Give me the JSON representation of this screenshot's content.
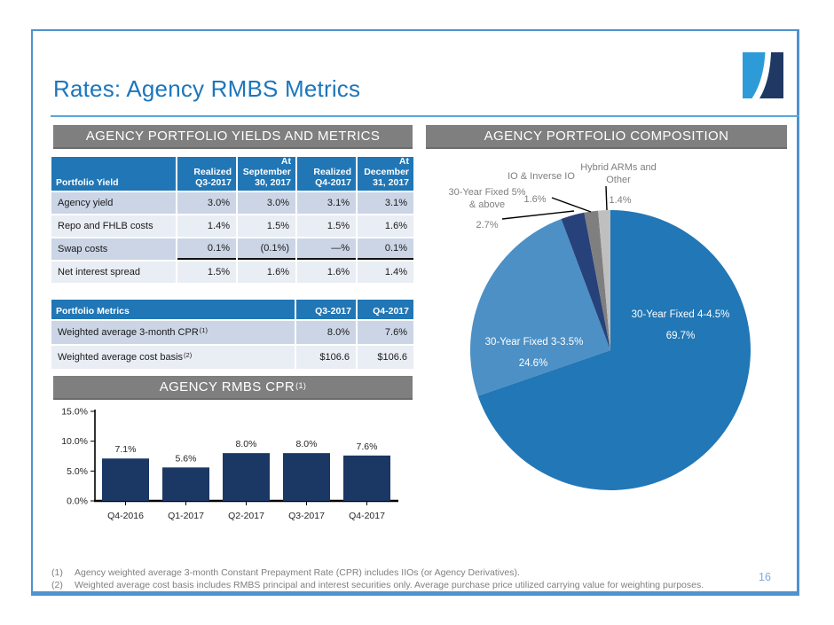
{
  "slide": {
    "title": "Rates: Agency RMBS Metrics",
    "page_number": "16"
  },
  "colors": {
    "accent_blue": "#1C76BC",
    "border_blue": "#4E93CE",
    "header_bar_gray": "#7F7F7F",
    "table_header_blue": "#2176B5",
    "row_alt_dark": "#CBD5E6",
    "row_alt_light": "#E9EDF4",
    "bar_navy": "#1B3764",
    "footnote_gray": "#7F7F7F",
    "page_number_blue": "#7FA8D9",
    "logo_light_blue": "#2E9BD9",
    "logo_navy": "#1F3864"
  },
  "left_panel": {
    "header": "AGENCY PORTFOLIO YIELDS AND METRICS",
    "yield_table": {
      "columns": [
        "Portfolio Yield",
        "Realized Q3-2017",
        "At September 30, 2017",
        "Realized Q4-2017",
        "At December 31, 2017"
      ],
      "rows": [
        [
          "Agency yield",
          "3.0%",
          "3.0%",
          "3.1%",
          "3.1%"
        ],
        [
          "Repo and FHLB costs",
          "1.4%",
          "1.5%",
          "1.5%",
          "1.6%"
        ],
        [
          "Swap costs",
          "0.1%",
          "(0.1%)",
          "—%",
          "0.1%"
        ],
        [
          "Net interest spread",
          "1.5%",
          "1.6%",
          "1.6%",
          "1.4%"
        ]
      ]
    },
    "metrics_table": {
      "columns": [
        "Portfolio Metrics",
        "Q3-2017",
        "Q4-2017"
      ],
      "rows": [
        {
          "label": "Weighted average 3-month CPR",
          "sup": "(1)",
          "q3": "8.0%",
          "q4": "7.6%"
        },
        {
          "label": "Weighted average cost basis",
          "sup": "(2)",
          "q3": "$106.6",
          "q4": "$106.6"
        }
      ]
    },
    "cpr_header": {
      "text": "AGENCY RMBS CPR",
      "sup": "(1)"
    }
  },
  "right_panel": {
    "header": "AGENCY PORTFOLIO COMPOSITION"
  },
  "chart_data": [
    {
      "type": "bar",
      "title": "AGENCY RMBS CPR (1)",
      "categories": [
        "Q4-2016",
        "Q1-2017",
        "Q2-2017",
        "Q3-2017",
        "Q4-2017"
      ],
      "values": [
        7.1,
        5.6,
        8.0,
        8.0,
        7.6
      ],
      "value_labels": [
        "7.1%",
        "5.6%",
        "8.0%",
        "8.0%",
        "7.6%"
      ],
      "xlabel": "",
      "ylabel": "",
      "ylim": [
        0,
        15
      ],
      "yticks": [
        {
          "value": 0,
          "label": "0.0%"
        },
        {
          "value": 5,
          "label": "5.0%"
        },
        {
          "value": 10,
          "label": "10.0%"
        },
        {
          "value": 15,
          "label": "15.0%"
        }
      ],
      "grid": false,
      "legend": false,
      "bar_color": "#1B3764"
    },
    {
      "type": "pie",
      "title": "AGENCY PORTFOLIO COMPOSITION",
      "start_angle_deg": -90,
      "direction": "clockwise",
      "slices": [
        {
          "name": "30-Year Fixed 4-4.5%",
          "value": 69.7,
          "pct": "69.7%",
          "color": "#2277B6",
          "label_position": "inside"
        },
        {
          "name": "30-Year Fixed 3-3.5%",
          "value": 24.6,
          "pct": "24.6%",
          "color": "#4C90C5",
          "label_position": "inside"
        },
        {
          "name": "30-Year Fixed 5% & above",
          "value": 2.7,
          "pct": "2.7%",
          "color": "#27417A",
          "label_position": "outside"
        },
        {
          "name": "IO & Inverse IO",
          "value": 1.6,
          "pct": "1.6%",
          "color": "#7F7F7F",
          "label_position": "outside"
        },
        {
          "name": "Hybrid ARMs and Other",
          "value": 1.4,
          "pct": "1.4%",
          "color": "#BFBFBF",
          "label_position": "outside"
        }
      ]
    }
  ],
  "footnotes": [
    {
      "marker": "(1)",
      "text": "Agency weighted average 3-month Constant Prepayment Rate (CPR) includes IIOs (or Agency Derivatives)."
    },
    {
      "marker": "(2)",
      "text": "Weighted average cost basis includes RMBS principal and interest securities only.  Average purchase price utilized carrying value for weighting purposes."
    }
  ]
}
